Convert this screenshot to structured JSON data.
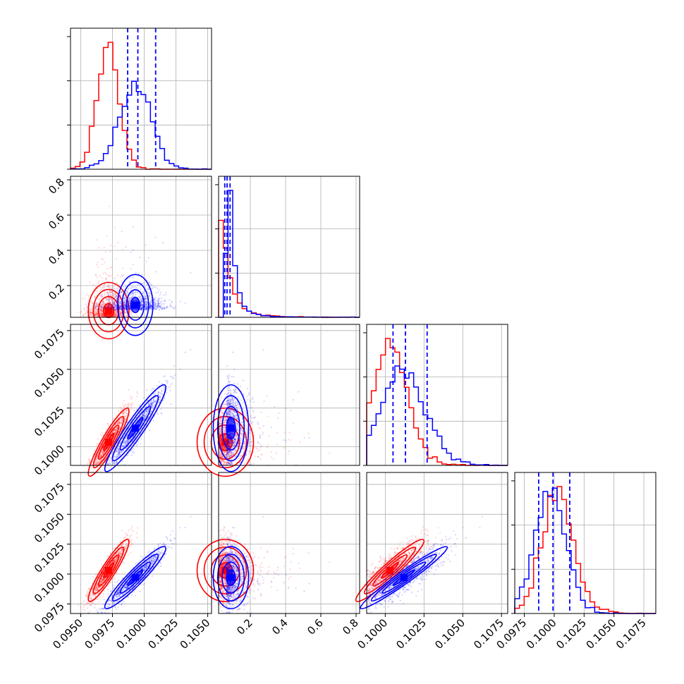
{
  "colors": {
    "series_a": "#ff0000",
    "series_b": "#0000ff",
    "grid": "#b0b0b0"
  },
  "chart_data": {
    "type": "scatter",
    "subtype": "corner-plot",
    "title": "",
    "grid": true,
    "parameters": [
      {
        "ticks": [
          "0.0950",
          "0.0975",
          "0.1000",
          "0.1025",
          "0.1050"
        ],
        "tick_values": [
          0.095,
          0.0975,
          0.1,
          0.1025,
          0.105
        ],
        "range": [
          0.0942,
          0.1053
        ]
      },
      {
        "ticks": [
          "0.2",
          "0.4",
          "0.6",
          "0.8"
        ],
        "tick_values": [
          0.2,
          0.4,
          0.6,
          0.8
        ],
        "range": [
          0.02,
          0.82
        ]
      },
      {
        "ticks": [
          "0.1000",
          "0.1025",
          "0.1050",
          "0.1075"
        ],
        "tick_values": [
          0.1,
          0.1025,
          0.105,
          0.1075
        ],
        "range": [
          0.0988,
          0.1079
        ]
      },
      {
        "ticks": [
          "0.0975",
          "0.1000",
          "0.1025",
          "0.1050",
          "0.1075"
        ],
        "tick_values": [
          0.0975,
          0.1,
          0.1025,
          0.105,
          0.1075
        ],
        "range": [
          0.0967,
          0.1085
        ]
      }
    ],
    "series": [
      {
        "color": "#ff0000",
        "means": [
          0.0972,
          0.058,
          0.1003,
          0.1003
        ],
        "sigmas": [
          0.0008,
          0.08,
          0.0011,
          0.0013
        ],
        "hist_tails": [
          0.5,
          2.5,
          0.5,
          0.6
        ],
        "correlations": [
          [
            0,
            2,
            0.92
          ],
          [
            0,
            3,
            0.92
          ],
          [
            2,
            3,
            0.95
          ]
        ]
      },
      {
        "color": "#0000ff",
        "means": [
          0.0993,
          0.09,
          0.1012,
          0.0997
        ],
        "sigmas": [
          0.0012,
          0.05,
          0.0014,
          0.0013
        ],
        "hist_tails": [
          0.4,
          1.5,
          0.4,
          0.3
        ],
        "correlations": [
          [
            0,
            2,
            0.94
          ],
          [
            0,
            3,
            0.94
          ],
          [
            2,
            3,
            0.97
          ]
        ]
      }
    ],
    "quantile_lines": [
      [
        0.0987,
        0.0995,
        0.1009
      ],
      [
        0.055,
        0.068,
        0.085
      ],
      [
        0.1005,
        0.1013,
        0.1027
      ],
      [
        0.0987,
        0.0999,
        0.1013
      ]
    ],
    "quantile_color": "#0000ff"
  }
}
